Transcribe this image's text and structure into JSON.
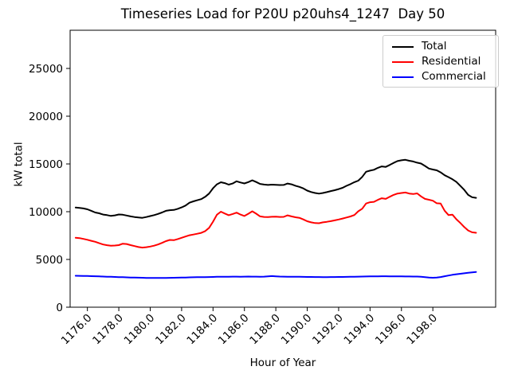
{
  "figure": {
    "title": "Timeseries Load for P20U p20uhs4_1247  Day 50",
    "xlabel": "Hour of Year",
    "ylabel": "kW total",
    "background": "#ffffff"
  },
  "chart_data": {
    "type": "line",
    "title": "Timeseries Load for P20U p20uhs4_1247  Day 50",
    "xlabel": "Hour of Year",
    "ylabel": "kW total",
    "xlim": [
      1174.9,
      1202.0
    ],
    "ylim": [
      0,
      29000
    ],
    "x_ticks": [
      1176,
      1178,
      1180,
      1182,
      1184,
      1186,
      1188,
      1190,
      1192,
      1194,
      1196,
      1198
    ],
    "x_tick_labels": [
      "1176.0",
      "1178.0",
      "1180.0",
      "1182.0",
      "1184.0",
      "1186.0",
      "1188.0",
      "1190.0",
      "1192.0",
      "1194.0",
      "1196.0",
      "1198.0"
    ],
    "x_tick_rotation_deg": 45,
    "y_ticks": [
      0,
      5000,
      10000,
      15000,
      20000,
      25000
    ],
    "y_tick_labels": [
      "0",
      "5000",
      "10000",
      "15000",
      "20000",
      "25000"
    ],
    "grid": false,
    "legend_position": "upper right",
    "x_start": 1175.25,
    "x_step": 0.25,
    "n_points": 103,
    "series": [
      {
        "name": "Total",
        "color": "#000000",
        "values": [
          10430,
          10400,
          10340,
          10250,
          10090,
          9920,
          9830,
          9700,
          9640,
          9560,
          9620,
          9710,
          9680,
          9600,
          9510,
          9440,
          9390,
          9360,
          9440,
          9540,
          9640,
          9770,
          9920,
          10090,
          10160,
          10180,
          10300,
          10450,
          10640,
          10940,
          11080,
          11200,
          11320,
          11560,
          11900,
          12450,
          12870,
          13080,
          12990,
          12830,
          12950,
          13180,
          13060,
          12960,
          13100,
          13280,
          13110,
          12910,
          12840,
          12800,
          12830,
          12820,
          12790,
          12800,
          12950,
          12870,
          12720,
          12600,
          12440,
          12210,
          12060,
          11960,
          11890,
          11960,
          12050,
          12160,
          12250,
          12370,
          12500,
          12710,
          12880,
          13090,
          13250,
          13640,
          14180,
          14300,
          14390,
          14590,
          14740,
          14690,
          14890,
          15110,
          15300,
          15380,
          15430,
          15330,
          15260,
          15130,
          15040,
          14790,
          14520,
          14420,
          14330,
          14120,
          13820,
          13620,
          13390,
          13120,
          12700,
          12280,
          11760,
          11520,
          11450
        ]
      },
      {
        "name": "Residential",
        "color": "#ff0000",
        "values": [
          7270,
          7230,
          7150,
          7060,
          6950,
          6850,
          6700,
          6570,
          6490,
          6440,
          6460,
          6500,
          6650,
          6620,
          6500,
          6400,
          6300,
          6240,
          6280,
          6350,
          6440,
          6570,
          6730,
          6920,
          7040,
          7020,
          7130,
          7270,
          7400,
          7530,
          7610,
          7690,
          7780,
          7970,
          8310,
          8950,
          9680,
          10000,
          9810,
          9630,
          9760,
          9900,
          9700,
          9550,
          9780,
          10040,
          9790,
          9510,
          9450,
          9440,
          9470,
          9480,
          9450,
          9460,
          9620,
          9510,
          9420,
          9360,
          9190,
          9000,
          8880,
          8810,
          8790,
          8880,
          8940,
          9010,
          9090,
          9180,
          9280,
          9390,
          9500,
          9650,
          10040,
          10310,
          10860,
          10990,
          11030,
          11240,
          11410,
          11340,
          11560,
          11760,
          11900,
          11960,
          12010,
          11900,
          11850,
          11920,
          11600,
          11340,
          11250,
          11150,
          10880,
          10850,
          10100,
          9640,
          9680,
          9210,
          8820,
          8390,
          8030,
          7840,
          7790
        ]
      },
      {
        "name": "Commercial",
        "color": "#0000ff",
        "values": [
          3290,
          3285,
          3275,
          3265,
          3250,
          3240,
          3225,
          3210,
          3195,
          3180,
          3165,
          3150,
          3140,
          3125,
          3110,
          3100,
          3090,
          3080,
          3070,
          3065,
          3060,
          3060,
          3065,
          3070,
          3075,
          3080,
          3090,
          3100,
          3110,
          3125,
          3130,
          3140,
          3145,
          3150,
          3160,
          3170,
          3180,
          3190,
          3190,
          3195,
          3200,
          3200,
          3195,
          3200,
          3205,
          3200,
          3200,
          3195,
          3200,
          3230,
          3255,
          3230,
          3210,
          3200,
          3195,
          3190,
          3185,
          3180,
          3175,
          3170,
          3165,
          3160,
          3155,
          3150,
          3150,
          3155,
          3160,
          3165,
          3170,
          3175,
          3180,
          3190,
          3200,
          3210,
          3220,
          3225,
          3230,
          3235,
          3240,
          3240,
          3235,
          3230,
          3230,
          3225,
          3220,
          3215,
          3210,
          3205,
          3190,
          3150,
          3110,
          3080,
          3100,
          3160,
          3240,
          3320,
          3390,
          3450,
          3500,
          3550,
          3600,
          3650,
          3680
        ]
      }
    ]
  }
}
